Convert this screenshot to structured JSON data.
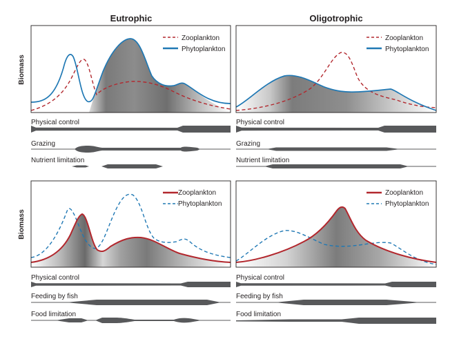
{
  "columns": [
    {
      "id": "eutrophic",
      "title": "Eutrophic"
    },
    {
      "id": "oligotrophic",
      "title": "Oligotrophic"
    }
  ],
  "y_axis_label": "Biomass",
  "colors": {
    "zooplankton": "#b2272d",
    "phytoplankton": "#1f78b4",
    "shading_dark": "#7d7d7d",
    "bars": "#58595b"
  },
  "panels": [
    {
      "id": "top-eutrophic",
      "legend": [
        {
          "label": "Zooplankton",
          "color": "#b2272d",
          "style": "dashed"
        },
        {
          "label": "Phytoplankton",
          "color": "#1f78b4",
          "style": "solid"
        }
      ],
      "curves": [
        {
          "series": "Zooplankton",
          "style": "dashed",
          "relative_biomass": [
            0.03,
            0.1,
            0.25,
            0.42,
            0.65,
            0.22,
            0.23,
            0.3,
            0.3,
            0.22,
            0.12,
            0.04
          ]
        },
        {
          "series": "Phytoplankton",
          "style": "solid",
          "relative_biomass": [
            0.1,
            0.3,
            0.8,
            0.1,
            0.38,
            0.95,
            0.45,
            0.3,
            0.32,
            0.14,
            0.1
          ]
        }
      ],
      "controls": [
        {
          "label": "Physical control"
        },
        {
          "label": "Grazing"
        },
        {
          "label": "Nutrient limitation"
        }
      ]
    },
    {
      "id": "top-oligotrophic",
      "legend": [
        {
          "label": "Zooplankton",
          "color": "#b2272d",
          "style": "dashed"
        },
        {
          "label": "Phytoplankton",
          "color": "#1f78b4",
          "style": "solid"
        }
      ],
      "curves": [
        {
          "series": "Zooplankton",
          "style": "dashed",
          "relative_biomass": [
            0.02,
            0.1,
            0.35,
            0.75,
            0.28,
            0.06
          ]
        },
        {
          "series": "Phytoplankton",
          "style": "solid",
          "relative_biomass": [
            0.05,
            0.45,
            0.25,
            0.28,
            0.05
          ]
        }
      ],
      "controls": [
        {
          "label": "Physical control"
        },
        {
          "label": "Grazing"
        },
        {
          "label": "Nutrient limitation"
        }
      ]
    },
    {
      "id": "bottom-eutrophic",
      "legend": [
        {
          "label": "Zooplankton",
          "color": "#b2272d",
          "style": "solid"
        },
        {
          "label": "Phytoplankton",
          "color": "#1f78b4",
          "style": "dashed"
        }
      ],
      "curves": [
        {
          "series": "Zooplankton",
          "style": "solid",
          "relative_biomass": [
            0.08,
            0.3,
            0.68,
            0.18,
            0.42,
            0.35,
            0.08
          ]
        },
        {
          "series": "Phytoplankton",
          "style": "dashed",
          "relative_biomass": [
            0.12,
            0.8,
            0.22,
            0.98,
            0.35,
            0.38,
            0.08
          ]
        }
      ],
      "controls": [
        {
          "label": "Physical control"
        },
        {
          "label": "Feeding by fish"
        },
        {
          "label": "Food limitation"
        }
      ]
    },
    {
      "id": "bottom-oligotrophic",
      "legend": [
        {
          "label": "Zooplankton",
          "color": "#b2272d",
          "style": "solid"
        },
        {
          "label": "Phytoplankton",
          "color": "#1f78b4",
          "style": "dashed"
        }
      ],
      "curves": [
        {
          "series": "Zooplankton",
          "style": "solid",
          "relative_biomass": [
            0.03,
            0.35,
            0.78,
            0.25,
            0.03
          ]
        },
        {
          "series": "Phytoplankton",
          "style": "dashed",
          "relative_biomass": [
            0.05,
            0.45,
            0.28,
            0.3,
            0.08
          ]
        }
      ],
      "controls": [
        {
          "label": "Physical control"
        },
        {
          "label": "Feeding by fish"
        },
        {
          "label": "Food limitation"
        }
      ]
    }
  ]
}
